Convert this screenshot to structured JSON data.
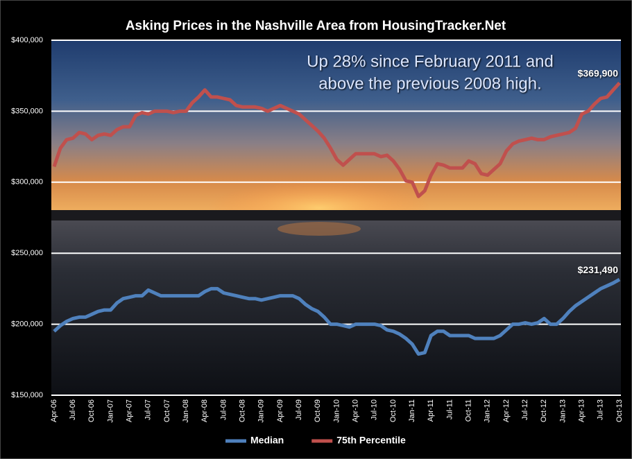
{
  "chart_data": {
    "type": "line",
    "title": "Asking Prices in the Nashville Area from HousingTracker.Net",
    "annotation": [
      "Up 28% since February 2011 and",
      "above the previous 2008 high."
    ],
    "categories": [
      "Apr-06",
      null,
      null,
      "Jul-06",
      null,
      null,
      "Oct-06",
      null,
      null,
      "Jan-07",
      null,
      null,
      "Apr-07",
      null,
      null,
      "Jul-07",
      null,
      null,
      "Oct-07",
      null,
      null,
      "Jan-08",
      null,
      null,
      "Apr-08",
      null,
      null,
      "Jul-08",
      null,
      null,
      "Oct-08",
      null,
      null,
      "Jan-09",
      null,
      null,
      "Apr-09",
      null,
      null,
      "Jul-09",
      null,
      null,
      "Oct-09",
      null,
      null,
      "Jan-10",
      null,
      null,
      "Apr-10",
      null,
      null,
      "Jul-10",
      null,
      null,
      "Oct-10",
      null,
      null,
      "Jan-11",
      null,
      null,
      "Apr-11",
      null,
      null,
      "Jul-11",
      null,
      null,
      "Oct-11",
      null,
      null,
      "Jan-12",
      null,
      null,
      "Apr-12",
      null,
      null,
      "Jul-12",
      null,
      null,
      "Oct-12",
      null,
      null,
      "Jan-13",
      null,
      null,
      "Apr-13",
      null,
      null,
      "Jul-13",
      null,
      null,
      "Oct-13"
    ],
    "series": [
      {
        "name": "Median",
        "color": "#4f81bd",
        "values": [
          195000,
          199000,
          202000,
          204000,
          205000,
          205000,
          207000,
          209000,
          210000,
          210000,
          215000,
          218000,
          219000,
          220000,
          220000,
          224000,
          222000,
          220000,
          220000,
          220000,
          220000,
          220000,
          220000,
          220000,
          223000,
          225000,
          225000,
          222000,
          221000,
          220000,
          219000,
          218000,
          218000,
          217000,
          218000,
          219000,
          220000,
          220000,
          220000,
          218000,
          214000,
          211000,
          209000,
          205000,
          200000,
          200000,
          199000,
          198000,
          200000,
          200000,
          200000,
          200000,
          199000,
          196000,
          195000,
          193000,
          190000,
          186000,
          179000,
          180000,
          192000,
          195000,
          195000,
          192000,
          192000,
          192000,
          192000,
          190000,
          190000,
          190000,
          190000,
          192000,
          196000,
          200000,
          200000,
          201000,
          200000,
          201000,
          204000,
          200000,
          200000,
          204000,
          209000,
          213000,
          216000,
          219000,
          222000,
          225000,
          227000,
          229000,
          231490
        ],
        "value_labels": [
          null,
          null,
          null,
          null,
          null,
          null,
          null,
          null,
          null,
          null,
          null,
          null,
          null,
          null,
          null,
          null,
          null,
          null,
          null,
          null,
          null,
          null,
          null,
          null,
          null,
          null,
          null,
          null,
          null,
          null,
          null,
          null,
          null,
          null,
          null,
          null,
          null,
          null,
          null,
          null,
          null,
          null,
          null,
          null,
          null,
          null,
          null,
          null,
          null,
          null,
          null,
          null,
          null,
          null,
          null,
          null,
          null,
          null,
          null,
          null,
          null,
          null,
          null,
          null,
          null,
          null,
          null,
          null,
          null,
          null,
          null,
          null,
          null,
          null,
          null,
          null,
          null,
          null,
          null,
          null,
          null,
          null,
          null,
          null,
          null,
          null,
          null,
          null,
          null,
          null,
          "$231,490"
        ]
      },
      {
        "name": "75th Percentile",
        "color": "#c0504d",
        "values": [
          311000,
          324000,
          330000,
          331000,
          335000,
          334000,
          330000,
          333000,
          334000,
          333000,
          337000,
          339000,
          339000,
          347000,
          349000,
          348000,
          350000,
          350000,
          350000,
          349000,
          350000,
          350000,
          356000,
          360000,
          365000,
          360000,
          360000,
          359000,
          358000,
          354000,
          353000,
          353000,
          353000,
          352000,
          350000,
          352000,
          354000,
          352000,
          350000,
          348000,
          344000,
          340000,
          336000,
          331000,
          324000,
          316000,
          312000,
          316000,
          320000,
          320000,
          320000,
          320000,
          318000,
          319000,
          315000,
          309000,
          301000,
          300000,
          290000,
          294000,
          305000,
          313000,
          312000,
          310000,
          310000,
          310000,
          315000,
          313000,
          306000,
          305000,
          309000,
          313000,
          322000,
          327000,
          329000,
          330000,
          331000,
          330000,
          330000,
          332000,
          333000,
          334000,
          335000,
          338000,
          348000,
          350000,
          355000,
          359000,
          360000,
          365000,
          369900
        ],
        "value_labels": [
          null,
          null,
          null,
          null,
          null,
          null,
          null,
          null,
          null,
          null,
          null,
          null,
          null,
          null,
          null,
          null,
          null,
          null,
          null,
          null,
          null,
          null,
          null,
          null,
          null,
          null,
          null,
          null,
          null,
          null,
          null,
          null,
          null,
          null,
          null,
          null,
          null,
          null,
          null,
          null,
          null,
          null,
          null,
          null,
          null,
          null,
          null,
          null,
          null,
          null,
          null,
          null,
          null,
          null,
          null,
          null,
          null,
          null,
          null,
          null,
          null,
          null,
          null,
          null,
          null,
          null,
          null,
          null,
          null,
          null,
          null,
          null,
          null,
          null,
          null,
          null,
          null,
          null,
          null,
          null,
          null,
          null,
          null,
          null,
          null,
          null,
          null,
          null,
          null,
          null,
          "$369,900"
        ]
      }
    ],
    "ylim": [
      150000,
      400000
    ],
    "yticks": [
      {
        "value": 150000,
        "label": "$150,000"
      },
      {
        "value": 200000,
        "label": "$200,000"
      },
      {
        "value": 250000,
        "label": "$250,000"
      },
      {
        "value": 300000,
        "label": "$300,000"
      },
      {
        "value": 350000,
        "label": "$350,000"
      },
      {
        "value": 400000,
        "label": "$400,000"
      }
    ],
    "grid": true,
    "legend": "bottom"
  }
}
